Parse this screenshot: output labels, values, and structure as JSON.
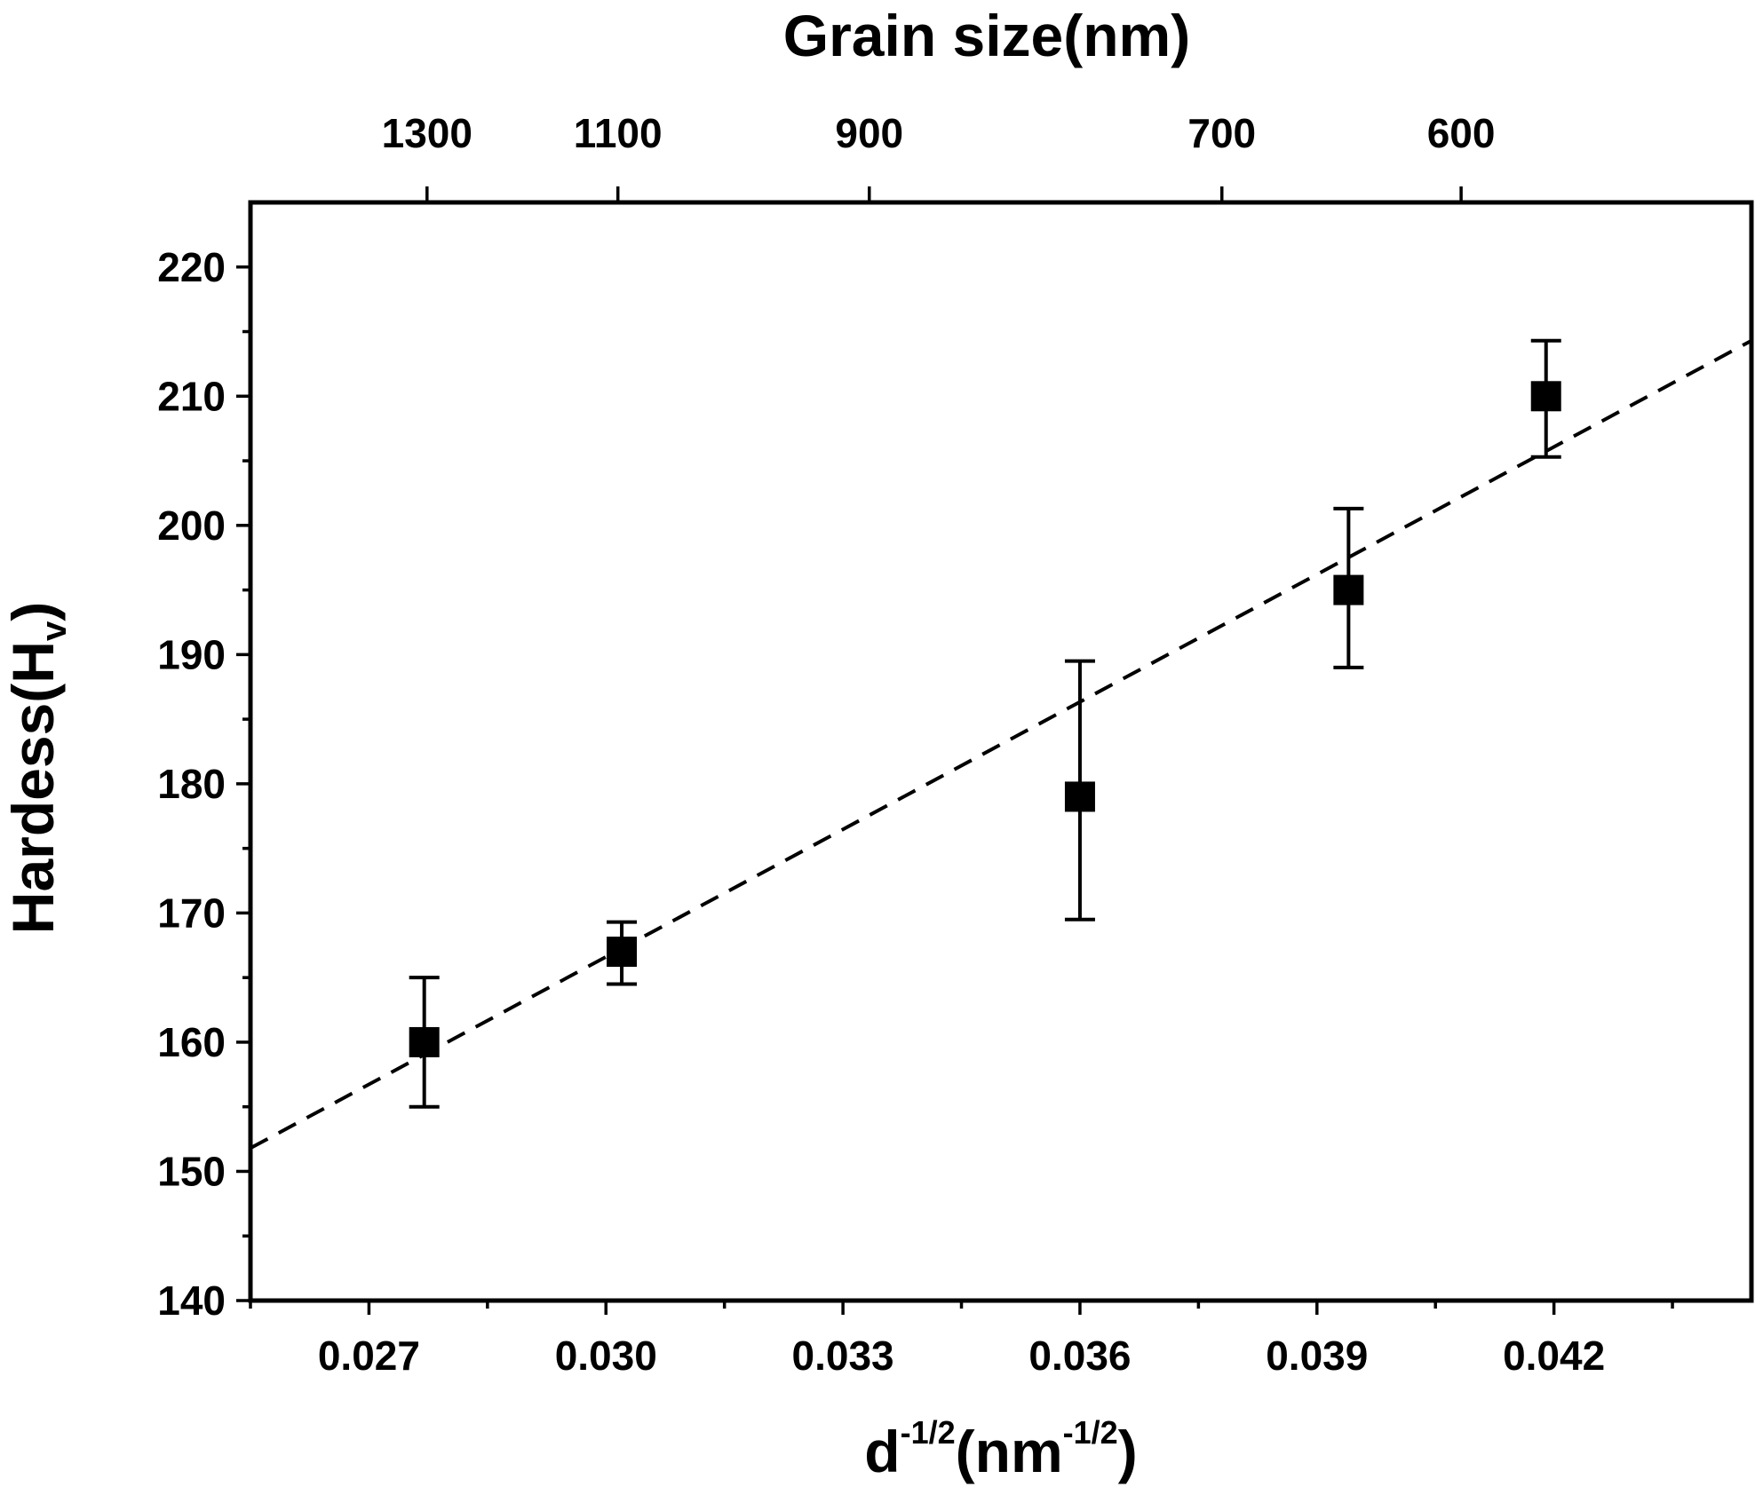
{
  "chart_data": {
    "type": "scatter",
    "xlabel": {
      "base": "d",
      "sup": "-1/2",
      "open": "(nm",
      "unit_sup": "-1/2",
      "close": ")"
    },
    "ylabel": {
      "base": "Hardess(H",
      "sub": "v",
      "close": ")"
    },
    "top_xlabel": "Grain size(nm)",
    "xlim": [
      0.0255,
      0.0445
    ],
    "ylim": [
      140,
      225
    ],
    "x_ticks": [
      0.027,
      0.03,
      0.033,
      0.036,
      0.039,
      0.042
    ],
    "x_tick_labels": [
      "0.027",
      "0.030",
      "0.033",
      "0.036",
      "0.039",
      "0.042"
    ],
    "y_ticks": [
      140,
      150,
      160,
      170,
      180,
      190,
      200,
      210,
      220
    ],
    "y_tick_labels": [
      "140",
      "150",
      "160",
      "170",
      "180",
      "190",
      "200",
      "210",
      "220"
    ],
    "top_ticks": [
      1300,
      1100,
      900,
      700,
      600
    ],
    "top_tick_labels": [
      "1300",
      "1100",
      "900",
      "700",
      "600"
    ],
    "series": [
      {
        "x": [
          0.0277,
          0.0302,
          0.036,
          0.0394,
          0.0419
        ],
        "y": [
          160,
          167,
          179,
          195,
          210
        ],
        "y_err_low": [
          155,
          164.5,
          169.5,
          189,
          205.3
        ],
        "y_err_high": [
          165,
          169.3,
          189.5,
          201.3,
          214.3
        ],
        "marker": "square"
      }
    ],
    "fit_line": {
      "x": [
        0.0255,
        0.0445
      ],
      "y": [
        151.8,
        214.3
      ],
      "style": "dashed"
    },
    "grid": false
  }
}
